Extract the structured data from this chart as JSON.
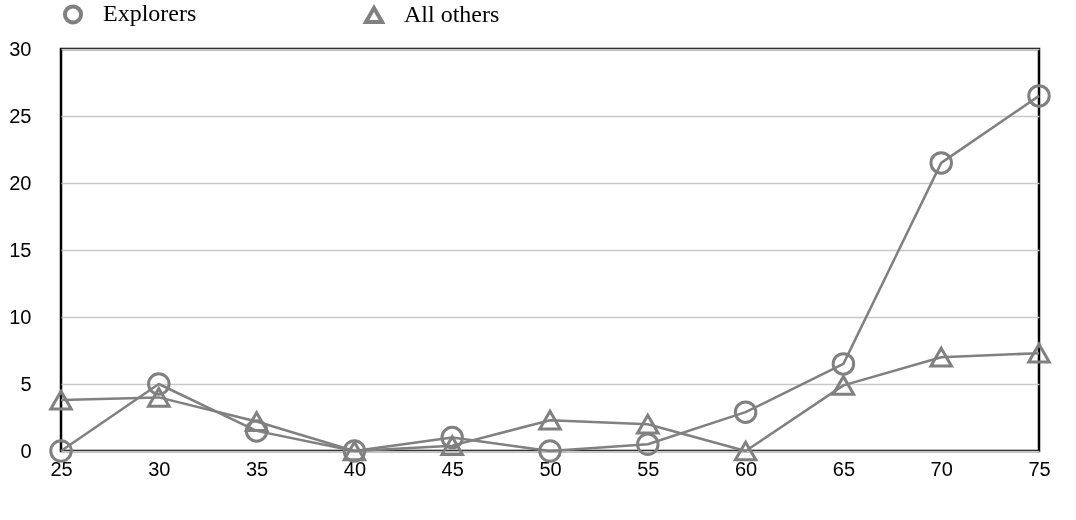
{
  "chart_data": {
    "type": "line",
    "x": [
      25,
      30,
      35,
      40,
      45,
      50,
      55,
      60,
      65,
      70,
      75
    ],
    "series": [
      {
        "name": "Explorers",
        "color": "#808080",
        "marker": "circle",
        "values": [
          0,
          5,
          1.5,
          0,
          1,
          0,
          0.5,
          2.9,
          6.5,
          21.5,
          26.5
        ]
      },
      {
        "name": "All others",
        "color": "#808080",
        "marker": "triangle",
        "values": [
          3.8,
          4,
          2.2,
          0,
          0.4,
          2.3,
          2,
          0,
          4.9,
          7,
          7.3
        ]
      }
    ],
    "xlim": [
      25,
      75
    ],
    "xticks": [
      25,
      30,
      35,
      40,
      45,
      50,
      55,
      60,
      65,
      70,
      75
    ],
    "ylim": [
      0,
      30
    ],
    "yticks": [
      0,
      5,
      10,
      15,
      20,
      25,
      30
    ],
    "grid": "y",
    "legend": "top",
    "line_style": "solid"
  }
}
